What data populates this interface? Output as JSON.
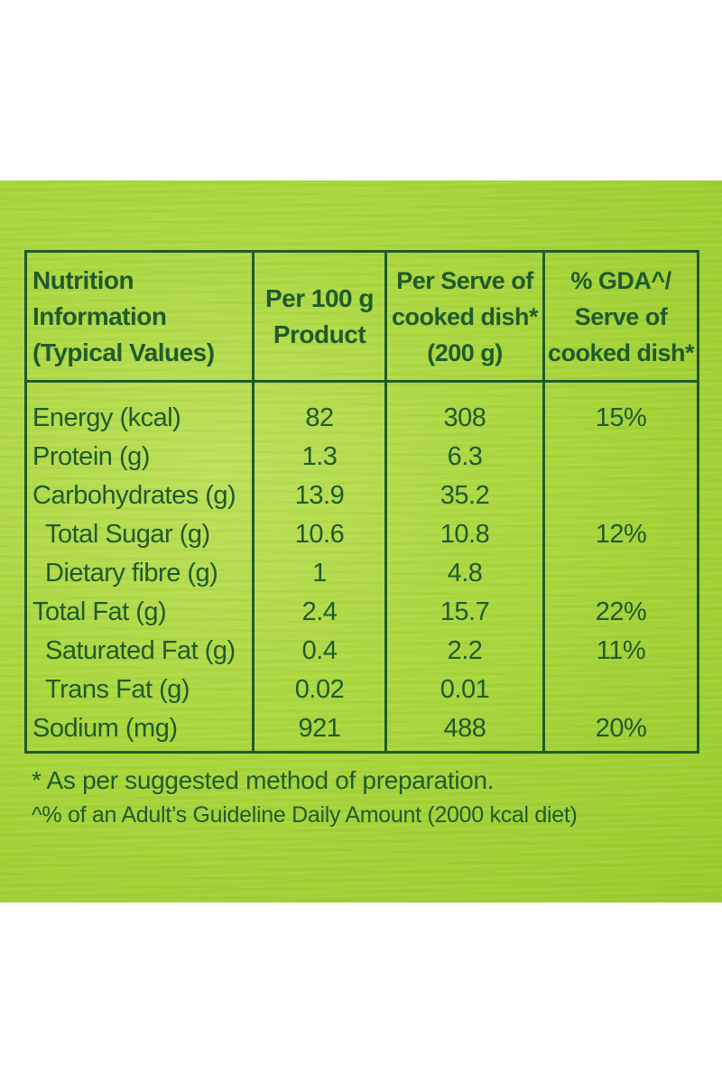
{
  "headers": {
    "nutrient": "Nutrition\nInformation\n(Typical Values)",
    "per_100g": "Per 100 g\nProduct",
    "per_serve": "Per Serve of\ncooked dish*\n(200 g)",
    "gda": "% GDA^/\nServe of\ncooked dish*"
  },
  "rows": [
    {
      "name": "Energy (kcal)",
      "per_100g": "82",
      "per_serve": "308",
      "gda": "15%"
    },
    {
      "name": "Protein (g)",
      "per_100g": "1.3",
      "per_serve": "6.3",
      "gda": ""
    },
    {
      "name": "Carbohydrates (g)",
      "per_100g": "13.9",
      "per_serve": "35.2",
      "gda": ""
    },
    {
      "name": "Total Sugar (g)",
      "per_100g": "10.6",
      "per_serve": "10.8",
      "gda": "12%"
    },
    {
      "name": "Dietary fibre (g)",
      "per_100g": "1",
      "per_serve": "4.8",
      "gda": ""
    },
    {
      "name": "Total Fat (g)",
      "per_100g": "2.4",
      "per_serve": "15.7",
      "gda": "22%"
    },
    {
      "name": "Saturated Fat (g)",
      "per_100g": "0.4",
      "per_serve": "2.2",
      "gda": "11%"
    },
    {
      "name": "Trans Fat (g)",
      "per_100g": "0.02",
      "per_serve": "0.01",
      "gda": ""
    },
    {
      "name": "Sodium (mg)",
      "per_100g": "921",
      "per_serve": "488",
      "gda": "20%"
    }
  ],
  "footnotes": {
    "preparation": "* As per suggested method of preparation.",
    "gda_note": "^% of an Adult’s Guideline Daily Amount (2000 kcal diet)"
  },
  "colors": {
    "text": "#1f5b2a",
    "background": "#a9d63c"
  }
}
